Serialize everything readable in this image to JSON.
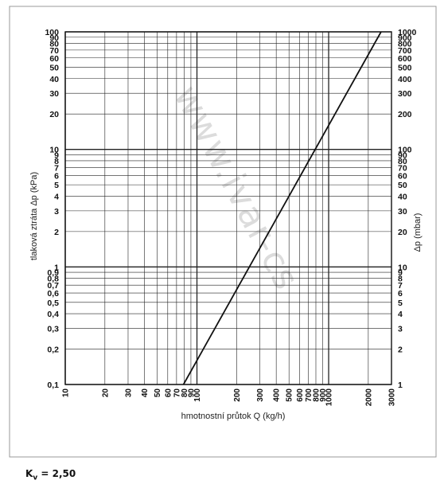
{
  "chart_data": {
    "type": "line",
    "title": "",
    "xlabel": "hmotnostní průtok Q (kg/h)",
    "ylabel_left": "tlaková ztráta Δp (kPa)",
    "ylabel_right": "Δp (mbar)",
    "x_scale": "log",
    "y_scale": "log",
    "xlim": [
      10,
      3000
    ],
    "ylim_kPa": [
      0.1,
      100
    ],
    "ylim_mbar": [
      1,
      1000
    ],
    "grid": true,
    "x_ticks": [
      "10",
      "20",
      "30",
      "40",
      "50",
      "60",
      "70",
      "80",
      "90",
      "100",
      "200",
      "300",
      "400",
      "500",
      "600",
      "700",
      "800",
      "900",
      "1000",
      "2000",
      "3000"
    ],
    "y_ticks_left": [
      "0,1",
      "0,2",
      "0,3",
      "0,4",
      "0,5",
      "0,6",
      "0,7",
      "0,8",
      "0,9",
      "1",
      "2",
      "3",
      "4",
      "5",
      "6",
      "7",
      "8",
      "9",
      "10",
      "20",
      "30",
      "40",
      "50",
      "60",
      "70",
      "80",
      "90",
      "100"
    ],
    "y_ticks_right": [
      "1",
      "2",
      "3",
      "4",
      "5",
      "6",
      "7",
      "8",
      "9",
      "10",
      "20",
      "30",
      "40",
      "50",
      "60",
      "70",
      "80",
      "90",
      "100",
      "200",
      "300",
      "400",
      "500",
      "600",
      "700",
      "800",
      "900",
      "1000"
    ],
    "series": [
      {
        "x": [
          79,
          2500
        ],
        "y": [
          0.1,
          100
        ]
      }
    ],
    "watermark": "www.ivar-cs",
    "line_color": "#111111",
    "grid_color": "#222222"
  },
  "footer": {
    "kv_label": "K",
    "kv_sub": "v",
    "kv_value": " = 2,50"
  }
}
